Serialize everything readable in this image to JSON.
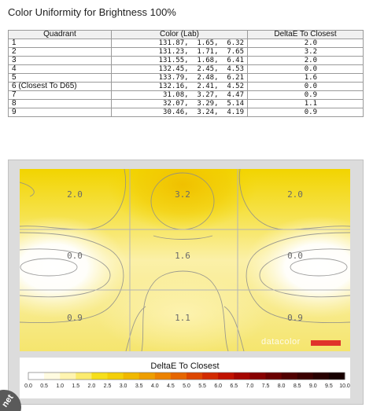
{
  "title": "Color Uniformity for Brightness 100%",
  "table": {
    "headers": [
      "Quadrant",
      "Color (Lab)",
      "DeltaE To Closest"
    ],
    "rows": [
      {
        "quadrant": "1",
        "lab": "131.87,  1.65,  6.32",
        "de": "2.0"
      },
      {
        "quadrant": "2",
        "lab": "131.23,  1.71,  7.65",
        "de": "3.2"
      },
      {
        "quadrant": "3",
        "lab": "131.55,  1.68,  6.41",
        "de": "2.0"
      },
      {
        "quadrant": "4",
        "lab": "132.45,  2.45,  4.53",
        "de": "0.0"
      },
      {
        "quadrant": "5",
        "lab": "133.79,  2.48,  6.21",
        "de": "1.6"
      },
      {
        "quadrant": "6 (Closest To D65)",
        "lab": "132.16,  2.41,  4.52",
        "de": "0.0"
      },
      {
        "quadrant": "7",
        "lab": " 31.08,  3.27,  4.47",
        "de": "0.9"
      },
      {
        "quadrant": "8",
        "lab": " 32.07,  3.29,  5.14",
        "de": "1.1"
      },
      {
        "quadrant": "9",
        "lab": " 30.46,  3.24,  4.19",
        "de": "0.9"
      }
    ]
  },
  "chart_data": {
    "type": "heatmap",
    "title": "DeltaE To Closest",
    "grid_rows": 3,
    "grid_cols": 3,
    "values": [
      [
        2.0,
        3.2,
        2.0
      ],
      [
        0.0,
        1.6,
        0.0
      ],
      [
        0.9,
        1.1,
        0.9
      ]
    ],
    "value_labels": [
      [
        "2.0",
        "3.2",
        "2.0"
      ],
      [
        "0.0",
        "1.6",
        "0.0"
      ],
      [
        "0.9",
        "1.1",
        "0.9"
      ]
    ],
    "colorbar": {
      "ticks": [
        "0.0",
        "0.5",
        "1.0",
        "1.5",
        "2.0",
        "2.5",
        "3.0",
        "3.5",
        "4.0",
        "4.5",
        "5.0",
        "5.5",
        "6.0",
        "6.5",
        "7.0",
        "7.5",
        "8.0",
        "8.5",
        "9.0",
        "9.5",
        "10.0"
      ],
      "range": [
        0,
        10
      ],
      "colors": [
        "#ffffff",
        "#fffbe0",
        "#fff4b0",
        "#fbeb6e",
        "#f6df1c",
        "#f3cf0a",
        "#f0b800",
        "#ee9e00",
        "#ec8200",
        "#e66600",
        "#dd4600",
        "#d22a00",
        "#c01200",
        "#a40600",
        "#870100",
        "#6a0000",
        "#500000",
        "#3a0000",
        "#270000",
        "#160000"
      ]
    },
    "watermark": "datacolor",
    "brand_color": "#e0332b"
  }
}
